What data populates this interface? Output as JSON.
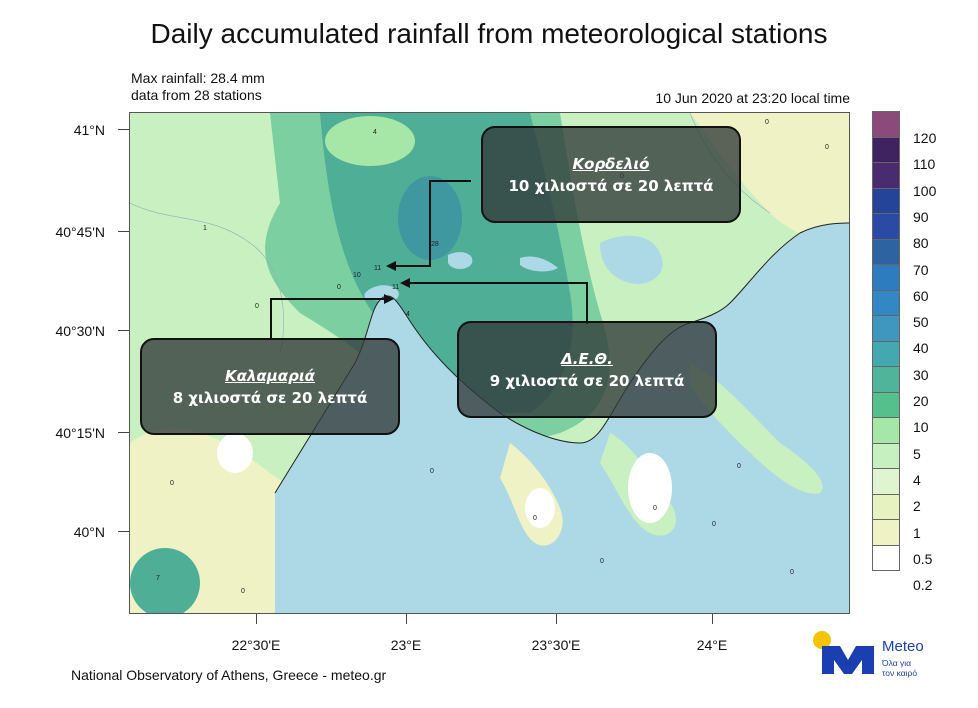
{
  "title": "Daily accumulated rainfall from meteorological stations",
  "max_rainfall": "Max rainfall: 28.4 mm",
  "stations_info": "data from 28 stations",
  "timestamp": "10 Jun 2020 at 23:20 local time",
  "lat_labels": [
    "41°N",
    "40°45'N",
    "40°30'N",
    "40°15'N",
    "40°N"
  ],
  "lon_labels": [
    "22°30'E",
    "23°E",
    "23°30'E",
    "24°E"
  ],
  "legend": {
    "labels": [
      "120",
      "110",
      "100",
      "90",
      "80",
      "70",
      "60",
      "50",
      "40",
      "30",
      "20",
      "10",
      "5",
      "4",
      "2",
      "1",
      "0.5",
      "0.2"
    ],
    "colors": [
      "#8c4a7a",
      "#3e2360",
      "#4b2b70",
      "#24449a",
      "#2b4aa6",
      "#2c63a0",
      "#2d7cbf",
      "#3188c4",
      "#3f97c0",
      "#43a8b0",
      "#4fb49a",
      "#56c08c",
      "#a6e6a6",
      "#c6f0c0",
      "#dff5d0",
      "#e6f2c0",
      "#eef2c4",
      "#ffffff"
    ]
  },
  "station_values": [
    "4",
    "1",
    "28",
    "10",
    "11",
    "0",
    "11",
    "4",
    "0",
    "0",
    "0",
    "0",
    "7",
    "0",
    "0",
    "0",
    "0",
    "0",
    "0",
    "0",
    "0",
    "0"
  ],
  "callouts": [
    {
      "place": "Κορδελιό",
      "text": "10 χιλιοστά σε 20 λεπτά"
    },
    {
      "place": "Καλαμαριά",
      "text": "8 χιλιοστά σε 20 λεπτά"
    },
    {
      "place": "Δ.Ε.Θ.",
      "text": "9 χιλιοστά σε 20 λεπτά"
    }
  ],
  "footer": "National Observatory of Athens, Greece - meteo.gr",
  "logo": {
    "brand": "Meteo",
    "slogan_line1": "Όλα για",
    "slogan_line2": "τον καιρό"
  },
  "colors": {
    "sea": "#add8e6",
    "land_light": "#c8f0c0",
    "land_teal": "#4fae96",
    "land_mid": "#7ccfa0",
    "pale_yellow": "#eef2c4"
  }
}
